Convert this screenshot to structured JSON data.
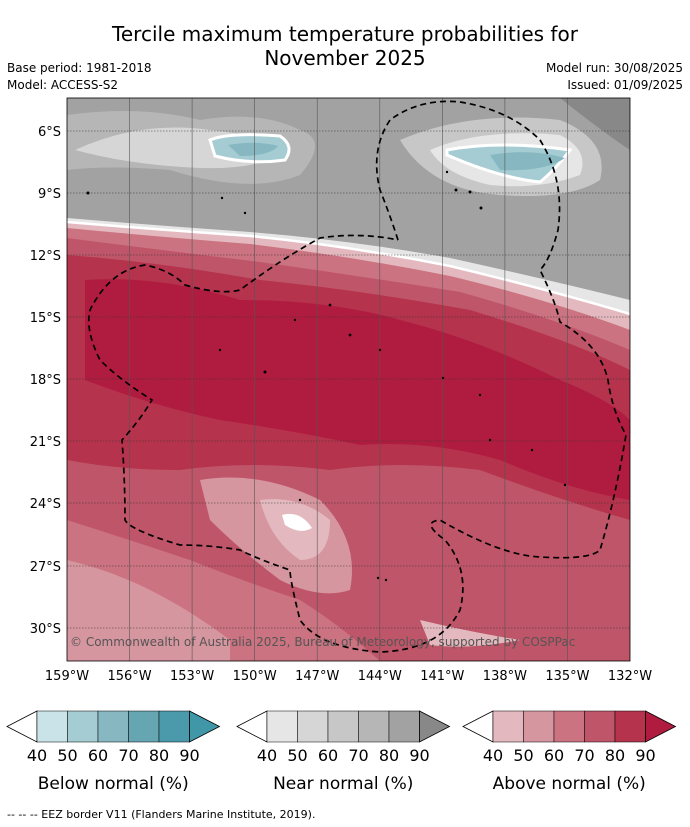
{
  "title_line1": "Tercile maximum temperature probabilities for",
  "title_line2": "November 2025",
  "base_period": "Base period: 1981-2018",
  "model": "Model: ACCESS-S2",
  "model_run": "Model run: 30/08/2025",
  "issued": "Issued: 01/09/2025",
  "copyright": "© Commonwealth of Australia 2025, Bureau of Meteorology, supported by COSPPac",
  "lat_labels": [
    "6°S",
    "9°S",
    "12°S",
    "15°S",
    "18°S",
    "21°S",
    "24°S",
    "27°S",
    "30°S"
  ],
  "lon_labels": [
    "159°W",
    "156°W",
    "153°W",
    "150°W",
    "147°W",
    "144°W",
    "141°W",
    "138°W",
    "135°W",
    "132°W"
  ],
  "colorbars": [
    {
      "label": "Below normal (%)",
      "ticks": [
        "40",
        "50",
        "60",
        "70",
        "80",
        "90"
      ],
      "colors": [
        "#c9e3e8",
        "#a5ccd3",
        "#87b8c2",
        "#66a6b2",
        "#4a9aab",
        "#3f97a8"
      ]
    },
    {
      "label": "Near normal (%)",
      "ticks": [
        "40",
        "50",
        "60",
        "70",
        "80",
        "90"
      ],
      "colors": [
        "#e6e6e6",
        "#d6d6d6",
        "#c7c7c7",
        "#b6b6b6",
        "#a2a2a2",
        "#888888"
      ]
    },
    {
      "label": "Above normal (%)",
      "ticks": [
        "40",
        "50",
        "60",
        "70",
        "80",
        "90"
      ],
      "colors": [
        "#e3b9bf",
        "#d6969f",
        "#cb7380",
        "#bf5568",
        "#b5334c",
        "#b01c40"
      ]
    }
  ],
  "footer": "--  --  -- EEZ border V11 (Flanders Marine Institute, 2019)."
}
